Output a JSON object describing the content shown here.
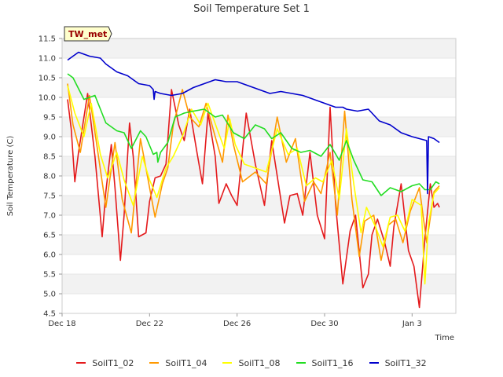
{
  "chart_data": {
    "type": "line",
    "title": "Soil Temperature Set 1",
    "xlabel": "Time",
    "ylabel": "Soil Temperature (C)",
    "annotation": "TW_met",
    "xlim": [
      "2022-12-18",
      "2023-01-05"
    ],
    "ylim": [
      4.5,
      11.5
    ],
    "x_ticks": [
      {
        "date": "2022-12-18",
        "label": "Dec 18"
      },
      {
        "date": "2022-12-22",
        "label": "Dec 22"
      },
      {
        "date": "2022-12-26",
        "label": "Dec 26"
      },
      {
        "date": "2022-12-30",
        "label": "Dec 30"
      },
      {
        "date": "2023-01-03",
        "label": "Jan 3"
      }
    ],
    "y_ticks": [
      {
        "value": 4.5,
        "label": "4.5"
      },
      {
        "value": 5.0,
        "label": "5.0"
      },
      {
        "value": 5.5,
        "label": "5.5"
      },
      {
        "value": 6.0,
        "label": "6.0"
      },
      {
        "value": 6.5,
        "label": "6.5"
      },
      {
        "value": 7.0,
        "label": "7.0"
      },
      {
        "value": 7.5,
        "label": "7.5"
      },
      {
        "value": 8.0,
        "label": "8.0"
      },
      {
        "value": 8.5,
        "label": "8.5"
      },
      {
        "value": 9.0,
        "label": "9.0"
      },
      {
        "value": 9.5,
        "label": "9.5"
      },
      {
        "value": 10.0,
        "label": "10.0"
      },
      {
        "value": 10.5,
        "label": "10.5"
      },
      {
        "value": 11.0,
        "label": "11.0"
      },
      {
        "value": 11.5,
        "label": "11.5"
      }
    ],
    "grid": "horizontal bands",
    "legend_position": "bottom",
    "series": [
      {
        "name": "SoilT1_02",
        "color": "#e41a1c",
        "x": [
          "2022-12-18 06:00",
          "2022-12-18 10:00",
          "2022-12-18 14:00",
          "2022-12-18 18:00",
          "2022-12-19 04:00",
          "2022-12-19 12:00",
          "2022-12-19 20:00",
          "2022-12-20 00:00",
          "2022-12-20 06:00",
          "2022-12-20 10:00",
          "2022-12-20 16:00",
          "2022-12-20 20:00",
          "2022-12-21 02:00",
          "2022-12-21 06:00",
          "2022-12-21 12:00",
          "2022-12-21 20:00",
          "2022-12-22 00:00",
          "2022-12-22 06:00",
          "2022-12-22 12:00",
          "2022-12-22 18:00",
          "2022-12-23 00:00",
          "2022-12-23 08:00",
          "2022-12-23 14:00",
          "2022-12-23 20:00",
          "2022-12-24 04:00",
          "2022-12-24 10:00",
          "2022-12-24 16:00",
          "2022-12-25 00:00",
          "2022-12-25 04:00",
          "2022-12-25 12:00",
          "2022-12-25 18:00",
          "2022-12-26 00:00",
          "2022-12-26 10:00",
          "2022-12-26 20:00",
          "2022-12-27 06:00",
          "2022-12-27 14:00",
          "2022-12-27 20:00",
          "2022-12-28 04:00",
          "2022-12-28 10:00",
          "2022-12-28 18:00",
          "2022-12-29 00:00",
          "2022-12-29 08:00",
          "2022-12-29 16:00",
          "2022-12-30 00:00",
          "2022-12-30 06:00",
          "2022-12-30 12:00",
          "2022-12-30 20:00",
          "2022-12-31 04:00",
          "2022-12-31 10:00",
          "2022-12-31 18:00",
          "2023-01-01 00:00",
          "2023-01-01 04:00",
          "2023-01-01 10:00",
          "2023-01-01 18:00",
          "2023-01-02 00:00",
          "2023-01-02 04:00",
          "2023-01-02 12:00",
          "2023-01-02 20:00",
          "2023-01-03 02:00",
          "2023-01-03 08:00",
          "2023-01-03 14:00",
          "2023-01-03 20:00",
          "2023-01-04 00:00",
          "2023-01-04 04:00",
          "2023-01-04 06:00"
        ],
        "y": [
          9.95,
          9.2,
          7.85,
          8.6,
          10.1,
          8.5,
          6.45,
          7.6,
          8.8,
          7.7,
          5.85,
          7.0,
          9.35,
          8.5,
          6.45,
          6.55,
          7.35,
          7.95,
          8.0,
          8.3,
          10.2,
          9.3,
          8.9,
          9.7,
          8.6,
          7.8,
          9.6,
          8.5,
          7.3,
          7.8,
          7.5,
          7.25,
          9.6,
          8.3,
          7.25,
          8.9,
          8.0,
          6.8,
          7.5,
          7.55,
          7.0,
          8.6,
          7.0,
          6.4,
          9.75,
          7.3,
          5.25,
          6.6,
          7.0,
          5.15,
          5.5,
          6.5,
          6.9,
          6.3,
          5.7,
          6.7,
          7.8,
          6.1,
          5.7,
          4.65,
          6.4,
          7.8,
          7.2,
          7.3,
          7.2
        ]
      },
      {
        "name": "SoilT1_04",
        "color": "#ff9900",
        "x": [
          "2022-12-18 06:00",
          "2022-12-18 12:00",
          "2022-12-18 20:00",
          "2022-12-19 06:00",
          "2022-12-19 14:00",
          "2022-12-20 00:00",
          "2022-12-20 10:00",
          "2022-12-20 18:00",
          "2022-12-21 04:00",
          "2022-12-21 14:00",
          "2022-12-21 22:00",
          "2022-12-22 06:00",
          "2022-12-22 14:00",
          "2022-12-22 20:00",
          "2022-12-23 02:00",
          "2022-12-23 12:00",
          "2022-12-23 20:00",
          "2022-12-24 06:00",
          "2022-12-24 14:00",
          "2022-12-25 00:00",
          "2022-12-25 08:00",
          "2022-12-25 14:00",
          "2022-12-25 20:00",
          "2022-12-26 06:00",
          "2022-12-26 20:00",
          "2022-12-27 08:00",
          "2022-12-27 20:00",
          "2022-12-28 06:00",
          "2022-12-28 16:00",
          "2022-12-29 02:00",
          "2022-12-29 12:00",
          "2022-12-29 20:00",
          "2022-12-30 06:00",
          "2022-12-30 14:00",
          "2022-12-30 22:00",
          "2022-12-31 06:00",
          "2022-12-31 14:00",
          "2022-12-31 20:00",
          "2023-01-01 06:00",
          "2023-01-01 14:00",
          "2023-01-01 22:00",
          "2023-01-02 06:00",
          "2023-01-02 14:00",
          "2023-01-02 22:00",
          "2023-01-03 08:00",
          "2023-01-03 16:00",
          "2023-01-04 00:00",
          "2023-01-04 06:00"
        ],
        "y": [
          10.35,
          9.3,
          8.6,
          10.05,
          8.8,
          7.2,
          8.85,
          7.4,
          6.55,
          8.95,
          7.95,
          6.95,
          7.8,
          8.2,
          9.3,
          10.2,
          9.5,
          9.25,
          9.85,
          9.0,
          8.35,
          9.55,
          8.8,
          7.85,
          8.1,
          7.8,
          9.5,
          8.35,
          8.95,
          7.35,
          7.85,
          7.55,
          8.6,
          7.0,
          9.65,
          7.4,
          5.95,
          6.85,
          7.0,
          5.85,
          6.75,
          6.9,
          6.3,
          7.1,
          7.7,
          6.3,
          7.6,
          7.75
        ]
      },
      {
        "name": "SoilT1_08",
        "color": "#ffff00",
        "x": [
          "2022-12-18 06:00",
          "2022-12-18 14:00",
          "2022-12-19 00:00",
          "2022-12-19 08:00",
          "2022-12-19 18:00",
          "2022-12-20 02:00",
          "2022-12-20 12:00",
          "2022-12-20 20:00",
          "2022-12-21 06:00",
          "2022-12-21 16:00",
          "2022-12-22 00:00",
          "2022-12-22 08:00",
          "2022-12-22 18:00",
          "2022-12-23 02:00",
          "2022-12-23 12:00",
          "2022-12-23 22:00",
          "2022-12-24 08:00",
          "2022-12-24 16:00",
          "2022-12-25 02:00",
          "2022-12-25 10:00",
          "2022-12-25 16:00",
          "2022-12-25 22:00",
          "2022-12-26 08:00",
          "2022-12-26 20:00",
          "2022-12-27 08:00",
          "2022-12-27 20:00",
          "2022-12-28 08:00",
          "2022-12-28 18:00",
          "2022-12-29 04:00",
          "2022-12-29 14:00",
          "2022-12-29 22:00",
          "2022-12-30 08:00",
          "2022-12-30 16:00",
          "2022-12-31 00:00",
          "2022-12-31 08:00",
          "2022-12-31 16:00",
          "2022-12-31 22:00",
          "2023-01-01 08:00",
          "2023-01-01 16:00",
          "2023-01-02 00:00",
          "2023-01-02 08:00",
          "2023-01-02 16:00",
          "2023-01-03 00:00",
          "2023-01-03 10:00",
          "2023-01-03 14:00",
          "2023-01-03 18:00",
          "2023-01-04 00:00",
          "2023-01-04 06:00"
        ],
        "y": [
          10.3,
          9.6,
          9.0,
          9.85,
          8.55,
          7.95,
          8.6,
          7.9,
          7.25,
          8.5,
          7.9,
          7.45,
          8.2,
          8.5,
          9.0,
          9.7,
          9.3,
          9.85,
          9.2,
          8.7,
          9.45,
          8.8,
          8.3,
          8.2,
          8.1,
          9.2,
          8.55,
          8.7,
          7.75,
          7.95,
          7.85,
          8.4,
          7.4,
          9.2,
          7.8,
          6.55,
          7.2,
          6.7,
          6.2,
          6.95,
          7.0,
          6.6,
          7.4,
          7.25,
          5.25,
          6.8,
          7.55,
          7.7
        ]
      },
      {
        "name": "SoilT1_16",
        "color": "#22dd22",
        "x": [
          "2022-12-18 06:00",
          "2022-12-18 12:00",
          "2022-12-19 00:00",
          "2022-12-19 12:00",
          "2022-12-20 00:00",
          "2022-12-20 12:00",
          "2022-12-20 20:00",
          "2022-12-21 04:00",
          "2022-12-21 14:00",
          "2022-12-21 20:00",
          "2022-12-22 04:00",
          "2022-12-22 08:00",
          "2022-12-22 09:00",
          "2022-12-22 12:00",
          "2022-12-22 20:00",
          "2022-12-23 04:00",
          "2022-12-23 14:00",
          "2022-12-24 00:00",
          "2022-12-24 12:00",
          "2022-12-25 00:00",
          "2022-12-25 08:00",
          "2022-12-25 20:00",
          "2022-12-26 08:00",
          "2022-12-26 20:00",
          "2022-12-27 06:00",
          "2022-12-27 14:00",
          "2022-12-28 00:00",
          "2022-12-28 12:00",
          "2022-12-28 22:00",
          "2022-12-29 08:00",
          "2022-12-29 20:00",
          "2022-12-30 06:00",
          "2022-12-30 16:00",
          "2022-12-31 00:00",
          "2022-12-31 08:00",
          "2022-12-31 18:00",
          "2023-01-01 04:00",
          "2023-01-01 14:00",
          "2023-01-02 00:00",
          "2023-01-02 12:00",
          "2023-01-03 00:00",
          "2023-01-03 08:00",
          "2023-01-03 14:00",
          "2023-01-03 20:00",
          "2023-01-04 02:00",
          "2023-01-04 06:00"
        ],
        "y": [
          10.6,
          10.5,
          9.95,
          10.05,
          9.35,
          9.15,
          9.1,
          8.7,
          9.15,
          9.0,
          8.55,
          8.6,
          8.35,
          8.6,
          8.85,
          9.5,
          9.6,
          9.65,
          9.7,
          9.5,
          9.55,
          9.1,
          8.95,
          9.3,
          9.2,
          8.95,
          9.1,
          8.7,
          8.6,
          8.65,
          8.5,
          8.8,
          8.4,
          8.9,
          8.4,
          7.9,
          7.85,
          7.5,
          7.7,
          7.6,
          7.75,
          7.8,
          7.65,
          7.65,
          7.85,
          7.8
        ]
      },
      {
        "name": "SoilT1_32",
        "color": "#0000cc",
        "x": [
          "2022-12-18 06:00",
          "2022-12-18 12:00",
          "2022-12-18 18:00",
          "2022-12-19 06:00",
          "2022-12-19 18:00",
          "2022-12-20 00:00",
          "2022-12-20 12:00",
          "2022-12-21 00:00",
          "2022-12-21 12:00",
          "2022-12-22 00:00",
          "2022-12-22 04:00",
          "2022-12-22 05:00",
          "2022-12-22 06:00",
          "2022-12-22 12:00",
          "2022-12-23 00:00",
          "2022-12-23 12:00",
          "2022-12-24 00:00",
          "2022-12-24 12:00",
          "2022-12-25 00:00",
          "2022-12-25 12:00",
          "2022-12-26 00:00",
          "2022-12-26 12:00",
          "2022-12-27 00:00",
          "2022-12-27 12:00",
          "2022-12-28 00:00",
          "2022-12-28 12:00",
          "2022-12-29 00:00",
          "2022-12-29 12:00",
          "2022-12-30 00:00",
          "2022-12-30 12:00",
          "2022-12-30 20:00",
          "2022-12-31 00:00",
          "2022-12-31 12:00",
          "2023-01-01 00:00",
          "2023-01-01 12:00",
          "2023-01-02 00:00",
          "2023-01-02 12:00",
          "2023-01-03 00:00",
          "2023-01-03 08:00",
          "2023-01-03 16:00",
          "2023-01-03 17:00",
          "2023-01-03 18:00",
          "2023-01-04 00:00",
          "2023-01-04 06:00"
        ],
        "y": [
          10.95,
          11.05,
          11.15,
          11.05,
          11.0,
          10.85,
          10.65,
          10.55,
          10.35,
          10.3,
          10.2,
          9.95,
          10.15,
          10.1,
          10.05,
          10.1,
          10.25,
          10.35,
          10.45,
          10.4,
          10.4,
          10.3,
          10.2,
          10.1,
          10.15,
          10.1,
          10.05,
          9.95,
          9.85,
          9.75,
          9.75,
          9.7,
          9.65,
          9.7,
          9.4,
          9.3,
          9.1,
          9.0,
          8.95,
          8.9,
          7.55,
          9.0,
          8.95,
          8.85
        ]
      }
    ]
  }
}
